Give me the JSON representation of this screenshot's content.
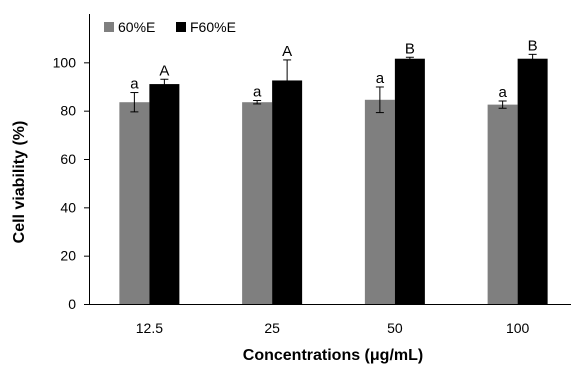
{
  "chart_data": {
    "type": "bar",
    "title": "",
    "xlabel": "Concentrations (μg/mL)",
    "ylabel": "Cell viability (%)",
    "categories": [
      "12.5",
      "25",
      "50",
      "100"
    ],
    "ylim": [
      0,
      120
    ],
    "yticks": [
      0,
      20,
      40,
      60,
      80,
      100
    ],
    "grid": false,
    "legend_position": "top-left",
    "series": [
      {
        "name": "60%E",
        "color": "#7f7f7f",
        "values": [
          83.5,
          83.5,
          84.5,
          82.5
        ],
        "errors": [
          4.0,
          0.7,
          5.3,
          1.5
        ],
        "labels": [
          "a",
          "a",
          "a",
          "a"
        ]
      },
      {
        "name": "F60%E",
        "color": "#000000",
        "values": [
          91.0,
          92.5,
          101.5,
          101.5
        ],
        "errors": [
          2.0,
          8.5,
          0.6,
          1.8
        ],
        "labels": [
          "A",
          "A",
          "B",
          "B"
        ]
      }
    ]
  }
}
